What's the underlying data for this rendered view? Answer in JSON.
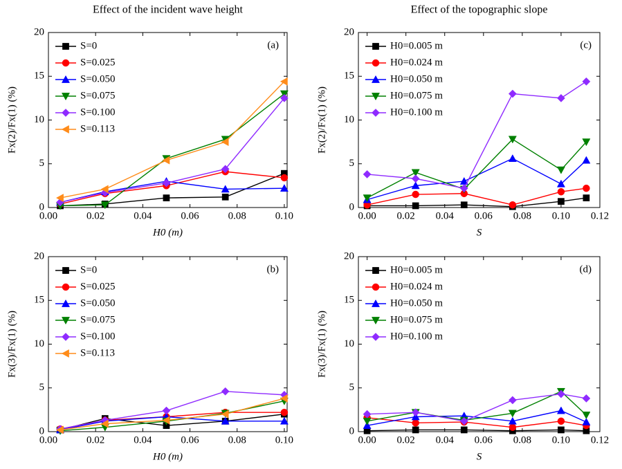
{
  "chart_data": [
    {
      "type": "line",
      "title": "Effect of the incident wave height",
      "annotation": "(a)",
      "xlabel": "H0 (m)",
      "ylabel": "Fx(2)/Fx(1) (%)",
      "x": [
        0.005,
        0.024,
        0.05,
        0.075,
        0.1
      ],
      "xlim": [
        0,
        0.1012
      ],
      "xticks": [
        {
          "value": 0,
          "label": "0.00"
        },
        0.02,
        0.04,
        0.06,
        0.08,
        {
          "value": 0.1,
          "label": "0.10"
        }
      ],
      "ylim": [
        0,
        20
      ],
      "yticks": [
        0,
        5,
        10,
        15,
        20
      ],
      "legend": "upper left",
      "series": [
        {
          "name": "S=0",
          "color": "#000000",
          "marker": "square",
          "values": [
            0.2,
            0.4,
            1.1,
            1.2,
            3.9
          ]
        },
        {
          "name": "S=0.025",
          "color": "#ff0000",
          "marker": "circle",
          "values": [
            0.4,
            1.6,
            2.5,
            4.1,
            3.4
          ]
        },
        {
          "name": "S=0.050",
          "color": "#0000ff",
          "marker": "triangle-up",
          "values": [
            0.6,
            1.8,
            3.0,
            2.1,
            2.2
          ]
        },
        {
          "name": "S=0.075",
          "color": "#008000",
          "marker": "triangle-down",
          "values": [
            0.2,
            0.3,
            5.6,
            7.8,
            13.0
          ]
        },
        {
          "name": "S=0.100",
          "color": "#8f2bff",
          "marker": "diamond",
          "values": [
            0.6,
            1.7,
            2.8,
            4.4,
            12.5
          ]
        },
        {
          "name": "S=0.113",
          "color": "#ff8c1a",
          "marker": "triangle-left",
          "values": [
            1.1,
            2.1,
            5.4,
            7.5,
            14.4
          ]
        }
      ]
    },
    {
      "type": "line",
      "annotation": "(b)",
      "xlabel": "H0 (m)",
      "ylabel": "Fx(3)/Fx(1) (%)",
      "x": [
        0.005,
        0.024,
        0.05,
        0.075,
        0.1
      ],
      "xlim": [
        0,
        0.1012
      ],
      "xticks": [
        {
          "value": 0,
          "label": "0.00"
        },
        0.02,
        0.04,
        0.06,
        0.08,
        {
          "value": 0.1,
          "label": "0.10"
        }
      ],
      "ylim": [
        0,
        20
      ],
      "yticks": [
        0,
        5,
        10,
        15,
        20
      ],
      "legend": "upper left",
      "series": [
        {
          "name": "S=0",
          "color": "#000000",
          "marker": "square",
          "values": [
            0.2,
            1.5,
            0.7,
            1.2,
            2.0
          ]
        },
        {
          "name": "S=0.025",
          "color": "#ff0000",
          "marker": "circle",
          "values": [
            0.3,
            1.3,
            1.7,
            2.2,
            2.2
          ]
        },
        {
          "name": "S=0.050",
          "color": "#0000ff",
          "marker": "triangle-up",
          "values": [
            0.2,
            1.2,
            1.7,
            1.2,
            1.2
          ]
        },
        {
          "name": "S=0.075",
          "color": "#008000",
          "marker": "triangle-down",
          "values": [
            0.1,
            0.5,
            1.2,
            2.1,
            3.5
          ]
        },
        {
          "name": "S=0.100",
          "color": "#8f2bff",
          "marker": "diamond",
          "values": [
            0.3,
            1.3,
            2.4,
            4.6,
            4.2
          ]
        },
        {
          "name": "S=0.113",
          "color": "#ff8c1a",
          "marker": "triangle-left",
          "values": [
            0.2,
            0.9,
            1.3,
            2.0,
            3.8
          ]
        }
      ]
    },
    {
      "type": "line",
      "title": "Effect of the topographic slope",
      "annotation": "(c)",
      "xlabel": "S",
      "ylabel": "Fx(2)/Fx(1) (%)",
      "x": [
        0,
        0.025,
        0.05,
        0.075,
        0.1,
        0.113
      ],
      "xlim": [
        -0.0045,
        0.12
      ],
      "xticks": [
        {
          "value": 0,
          "label": "0.00"
        },
        0.02,
        0.04,
        0.06,
        0.08,
        {
          "value": 0.1,
          "label": "0.10"
        },
        0.12
      ],
      "ylim": [
        0,
        20
      ],
      "yticks": [
        0,
        5,
        10,
        15,
        20
      ],
      "legend": "upper left",
      "series": [
        {
          "name": "H0=0.005 m",
          "color": "#000000",
          "marker": "square",
          "values": [
            0.2,
            0.2,
            0.3,
            0.1,
            0.7,
            1.1
          ]
        },
        {
          "name": "H0=0.024 m",
          "color": "#ff0000",
          "marker": "circle",
          "values": [
            0.3,
            1.5,
            1.6,
            0.3,
            1.8,
            2.2
          ]
        },
        {
          "name": "H0=0.050 m",
          "color": "#0000ff",
          "marker": "triangle-up",
          "values": [
            0.9,
            2.5,
            3.0,
            5.6,
            2.7,
            5.4
          ]
        },
        {
          "name": "H0=0.075 m",
          "color": "#008000",
          "marker": "triangle-down",
          "values": [
            1.1,
            4.0,
            2.1,
            7.8,
            4.3,
            7.5
          ]
        },
        {
          "name": "H0=0.100 m",
          "color": "#8f2bff",
          "marker": "diamond",
          "values": [
            3.8,
            3.3,
            2.2,
            13.0,
            12.5,
            14.4
          ]
        }
      ]
    },
    {
      "type": "line",
      "annotation": "(d)",
      "xlabel": "S",
      "ylabel": "Fx(3)/Fx(1) (%)",
      "x": [
        0,
        0.025,
        0.05,
        0.075,
        0.1,
        0.113
      ],
      "xlim": [
        -0.0045,
        0.12
      ],
      "xticks": [
        {
          "value": 0,
          "label": "0.00"
        },
        0.02,
        0.04,
        0.06,
        0.08,
        {
          "value": 0.1,
          "label": "0.10"
        },
        0.12
      ],
      "ylim": [
        0,
        20
      ],
      "yticks": [
        0,
        5,
        10,
        15,
        20
      ],
      "legend": "upper left",
      "series": [
        {
          "name": "H0=0.005 m",
          "color": "#000000",
          "marker": "square",
          "values": [
            0.1,
            0.2,
            0.2,
            0.1,
            0.2,
            0.1
          ]
        },
        {
          "name": "H0=0.024 m",
          "color": "#ff0000",
          "marker": "circle",
          "values": [
            1.6,
            1.0,
            1.1,
            0.5,
            1.2,
            0.7
          ]
        },
        {
          "name": "H0=0.050 m",
          "color": "#0000ff",
          "marker": "triangle-up",
          "values": [
            0.7,
            1.7,
            1.8,
            1.2,
            2.4,
            1.1
          ]
        },
        {
          "name": "H0=0.075 m",
          "color": "#008000",
          "marker": "triangle-down",
          "values": [
            1.2,
            2.2,
            1.3,
            2.1,
            4.6,
            1.9
          ]
        },
        {
          "name": "H0=0.100 m",
          "color": "#8f2bff",
          "marker": "diamond",
          "values": [
            2.0,
            2.2,
            1.2,
            3.6,
            4.3,
            3.8
          ]
        }
      ]
    }
  ]
}
